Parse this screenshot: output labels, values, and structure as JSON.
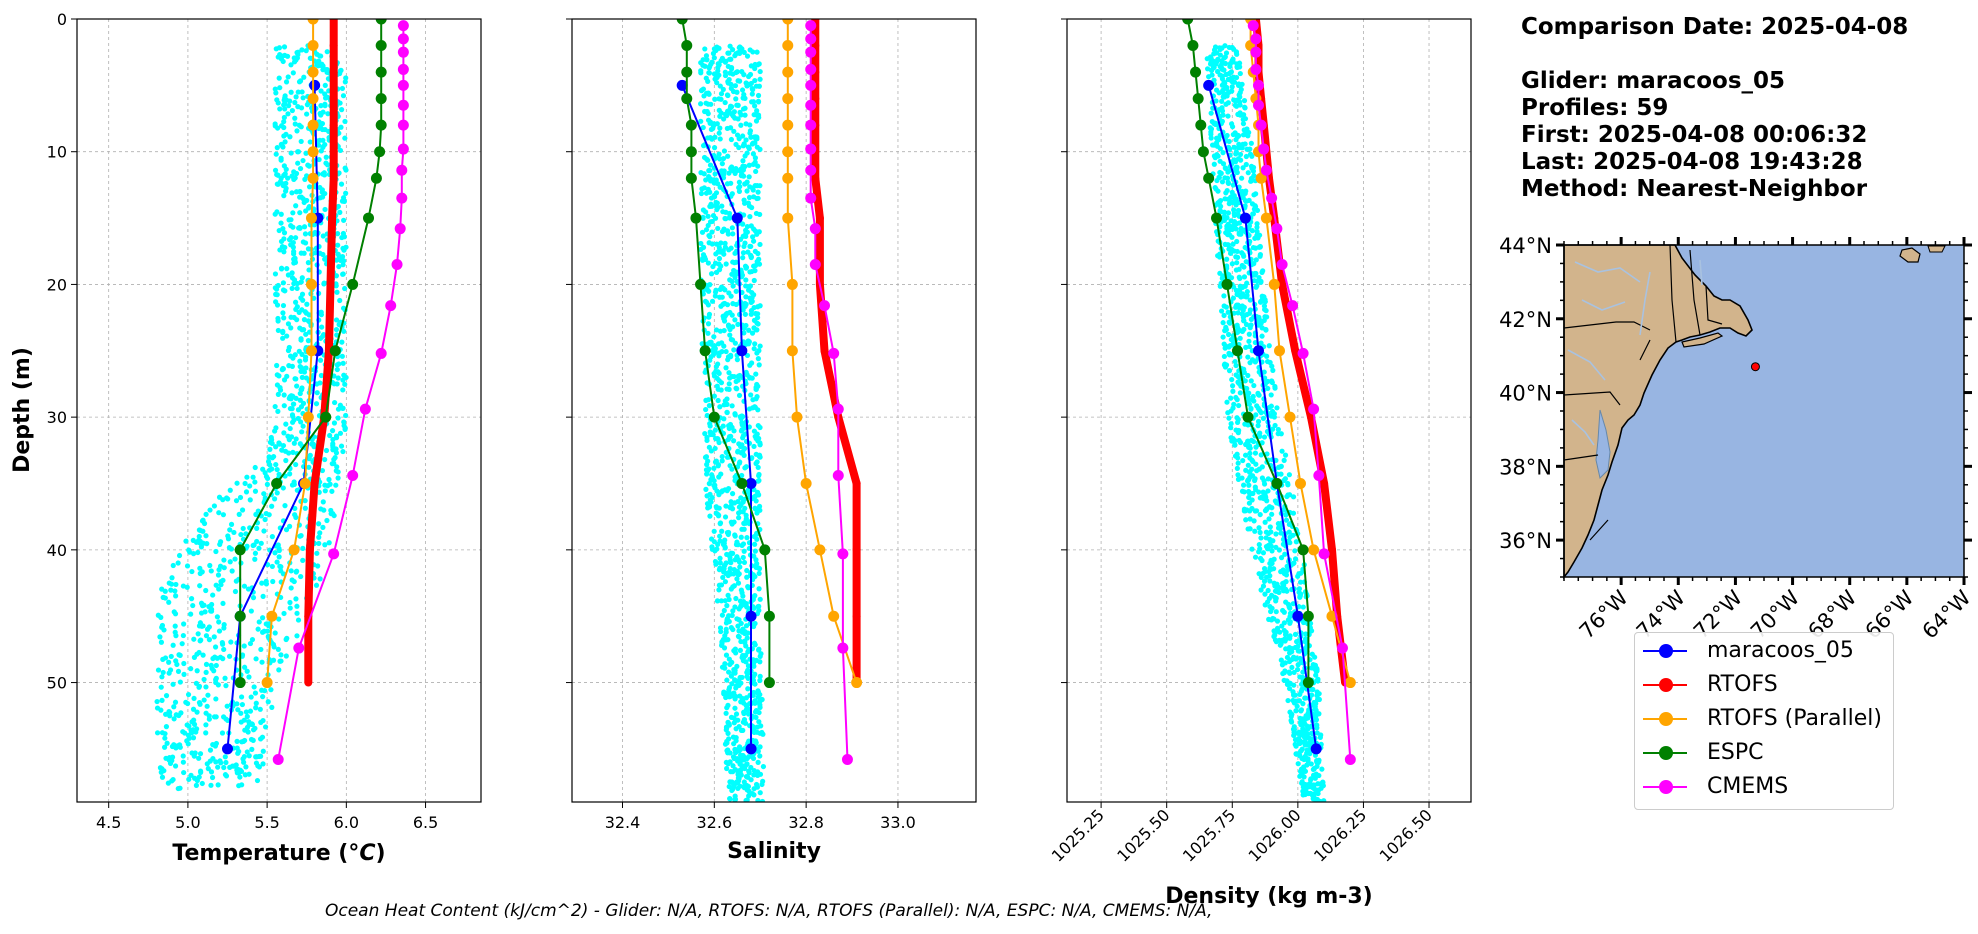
{
  "info": {
    "comparison_date": "Comparison Date: 2025-04-08",
    "glider": "Glider: maracoos_05",
    "profiles": "Profiles: 59",
    "first": "First: 2025-04-08 00:06:32",
    "last": "Last: 2025-04-08 19:43:28",
    "method": "Method: Nearest-Neighbor"
  },
  "footer": "Ocean Heat Content (kJ/cm^2) - Glider: N/A,  RTOFS: N/A,  RTOFS (Parallel): N/A,  ESPC: N/A,  CMEMS: N/A,",
  "colors": {
    "glider_scatter": "#00ffff",
    "maracoos_05": "#0000ff",
    "rtofs": "#ff0000",
    "rtofs_parallel": "#ffa500",
    "espc": "#008000",
    "cmems": "#ff00ff",
    "land": "#d2b48c",
    "ocean": "#98b5e2"
  },
  "legend": [
    {
      "label": "maracoos_05",
      "color": "#0000ff"
    },
    {
      "label": "RTOFS",
      "color": "#ff0000"
    },
    {
      "label": "RTOFS (Parallel)",
      "color": "#ffa500"
    },
    {
      "label": "ESPC",
      "color": "#008000"
    },
    {
      "label": "CMEMS",
      "color": "#ff00ff"
    }
  ],
  "chart_data": [
    {
      "type": "line",
      "xlabel": "Temperature (°C)",
      "ylabel": "Depth (m)",
      "xlim": [
        4.3,
        6.85
      ],
      "ylim": [
        59,
        0
      ],
      "xticks": [
        "4.5",
        "5.0",
        "5.5",
        "6.0",
        "6.5"
      ],
      "yticks": [
        "0",
        "10",
        "20",
        "30",
        "40",
        "50"
      ],
      "grid": true,
      "glider_cloud": [
        {
          "depth": 2,
          "min": 5.55,
          "max": 6.0
        },
        {
          "depth": 10,
          "min": 5.55,
          "max": 6.0
        },
        {
          "depth": 20,
          "min": 5.55,
          "max": 6.0
        },
        {
          "depth": 30,
          "min": 5.55,
          "max": 6.0
        },
        {
          "depth": 33,
          "min": 5.5,
          "max": 5.98
        },
        {
          "depth": 36,
          "min": 5.2,
          "max": 5.95
        },
        {
          "depth": 39,
          "min": 5.0,
          "max": 5.9
        },
        {
          "depth": 42,
          "min": 4.85,
          "max": 5.85
        },
        {
          "depth": 45,
          "min": 4.8,
          "max": 5.75
        },
        {
          "depth": 50,
          "min": 4.8,
          "max": 5.55
        },
        {
          "depth": 55,
          "min": 4.8,
          "max": 5.5
        },
        {
          "depth": 58,
          "min": 4.85,
          "max": 5.45
        }
      ],
      "series": [
        {
          "name": "maracoos_05",
          "key": "maracoos_05",
          "width": 2,
          "depth": [
            5,
            15,
            25,
            35,
            45,
            55
          ],
          "values": [
            5.8,
            5.82,
            5.82,
            5.73,
            5.33,
            5.25
          ]
        },
        {
          "name": "RTOFS",
          "key": "rtofs",
          "width": 8,
          "depth": [
            0,
            2,
            4,
            6,
            8,
            10,
            12,
            15,
            20,
            25,
            30,
            35,
            40,
            45,
            50
          ],
          "values": [
            5.92,
            5.92,
            5.92,
            5.92,
            5.92,
            5.92,
            5.92,
            5.91,
            5.9,
            5.89,
            5.86,
            5.8,
            5.77,
            5.76,
            5.76
          ]
        },
        {
          "name": "RTOFS (Parallel)",
          "key": "rtofs_parallel",
          "width": 2,
          "depth": [
            0,
            2,
            4,
            6,
            8,
            10,
            12,
            15,
            20,
            25,
            30,
            35,
            40,
            45,
            50
          ],
          "values": [
            5.79,
            5.79,
            5.79,
            5.79,
            5.79,
            5.79,
            5.79,
            5.78,
            5.78,
            5.78,
            5.76,
            5.74,
            5.67,
            5.53,
            5.5
          ]
        },
        {
          "name": "ESPC",
          "key": "espc",
          "width": 2,
          "depth": [
            0,
            2,
            4,
            6,
            8,
            10,
            12,
            15,
            20,
            25,
            30,
            35,
            40,
            45,
            50
          ],
          "values": [
            6.22,
            6.22,
            6.22,
            6.22,
            6.22,
            6.21,
            6.19,
            6.14,
            6.04,
            5.93,
            5.87,
            5.56,
            5.33,
            5.33,
            5.33
          ]
        },
        {
          "name": "CMEMS",
          "key": "cmems",
          "width": 2,
          "depth": [
            0.5,
            1.5,
            2.5,
            3.8,
            5,
            6.5,
            8,
            9.8,
            11.4,
            13.5,
            15.8,
            18.5,
            21.6,
            25.2,
            29.4,
            34.4,
            40.3,
            47.4,
            55.8
          ],
          "values": [
            6.36,
            6.36,
            6.36,
            6.36,
            6.36,
            6.36,
            6.36,
            6.36,
            6.35,
            6.35,
            6.34,
            6.32,
            6.28,
            6.22,
            6.12,
            6.04,
            5.92,
            5.7,
            5.57
          ]
        }
      ]
    },
    {
      "type": "line",
      "xlabel": "Salinity",
      "xlim": [
        32.29,
        33.17
      ],
      "ylim": [
        59,
        0
      ],
      "xticks": [
        "32.4",
        "32.6",
        "32.8",
        "33.0"
      ],
      "grid": true,
      "glider_cloud": [
        {
          "depth": 2,
          "min": 32.57,
          "max": 32.7
        },
        {
          "depth": 20,
          "min": 32.57,
          "max": 32.7
        },
        {
          "depth": 35,
          "min": 32.58,
          "max": 32.7
        },
        {
          "depth": 45,
          "min": 32.61,
          "max": 32.7
        },
        {
          "depth": 59,
          "min": 32.63,
          "max": 32.71
        }
      ],
      "series": [
        {
          "name": "maracoos_05",
          "key": "maracoos_05",
          "width": 2,
          "depth": [
            5,
            15,
            25,
            35,
            45,
            55
          ],
          "values": [
            32.53,
            32.65,
            32.66,
            32.68,
            32.68,
            32.68
          ]
        },
        {
          "name": "RTOFS",
          "key": "rtofs",
          "width": 8,
          "depth": [
            0,
            2,
            4,
            6,
            8,
            10,
            12,
            15,
            20,
            25,
            30,
            35,
            40,
            45,
            50
          ],
          "values": [
            32.82,
            32.82,
            32.82,
            32.82,
            32.82,
            32.82,
            32.82,
            32.83,
            32.83,
            32.84,
            32.87,
            32.91,
            32.91,
            32.91,
            32.91
          ]
        },
        {
          "name": "RTOFS (Parallel)",
          "key": "rtofs_parallel",
          "width": 2,
          "depth": [
            0,
            2,
            4,
            6,
            8,
            10,
            12,
            15,
            20,
            25,
            30,
            35,
            40,
            45,
            50
          ],
          "values": [
            32.76,
            32.76,
            32.76,
            32.76,
            32.76,
            32.76,
            32.76,
            32.76,
            32.77,
            32.77,
            32.78,
            32.8,
            32.83,
            32.86,
            32.91
          ]
        },
        {
          "name": "ESPC",
          "key": "espc",
          "width": 2,
          "depth": [
            0,
            2,
            4,
            6,
            8,
            10,
            12,
            15,
            20,
            25,
            30,
            35,
            40,
            45,
            50
          ],
          "values": [
            32.53,
            32.54,
            32.54,
            32.54,
            32.55,
            32.55,
            32.55,
            32.56,
            32.57,
            32.58,
            32.6,
            32.66,
            32.71,
            32.72,
            32.72
          ]
        },
        {
          "name": "CMEMS",
          "key": "cmems",
          "width": 2,
          "depth": [
            0.5,
            1.5,
            2.5,
            3.8,
            5,
            6.5,
            8,
            9.8,
            11.4,
            13.5,
            15.8,
            18.5,
            21.6,
            25.2,
            29.4,
            34.4,
            40.3,
            47.4,
            55.8
          ],
          "values": [
            32.81,
            32.81,
            32.81,
            32.81,
            32.81,
            32.81,
            32.81,
            32.81,
            32.81,
            32.81,
            32.82,
            32.82,
            32.84,
            32.86,
            32.87,
            32.87,
            32.88,
            32.88,
            32.89
          ]
        }
      ]
    },
    {
      "type": "line",
      "xlabel": "Density (kg m-3)",
      "xlim": [
        1025.12,
        1026.66
      ],
      "ylim": [
        59,
        0
      ],
      "xticks": [
        "1025.25",
        "1025.50",
        "1025.75",
        "1026.00",
        "1026.25",
        "1026.50"
      ],
      "grid": true,
      "glider_cloud": [
        {
          "depth": 2,
          "min": 1025.65,
          "max": 1025.77
        },
        {
          "depth": 10,
          "min": 1025.67,
          "max": 1025.83
        },
        {
          "depth": 20,
          "min": 1025.7,
          "max": 1025.87
        },
        {
          "depth": 30,
          "min": 1025.73,
          "max": 1025.93
        },
        {
          "depth": 40,
          "min": 1025.82,
          "max": 1026.02
        },
        {
          "depth": 50,
          "min": 1025.95,
          "max": 1026.08
        },
        {
          "depth": 59,
          "min": 1026.02,
          "max": 1026.1
        }
      ],
      "series": [
        {
          "name": "maracoos_05",
          "key": "maracoos_05",
          "width": 2,
          "depth": [
            5,
            15,
            25,
            35,
            45,
            55
          ],
          "values": [
            1025.66,
            1025.8,
            1025.85,
            1025.92,
            1026.0,
            1026.07
          ]
        },
        {
          "name": "RTOFS",
          "key": "rtofs",
          "width": 8,
          "depth": [
            0,
            2,
            4,
            6,
            8,
            10,
            12,
            15,
            20,
            25,
            30,
            35,
            40,
            45,
            50
          ],
          "values": [
            1025.84,
            1025.85,
            1025.85,
            1025.86,
            1025.87,
            1025.88,
            1025.89,
            1025.91,
            1025.94,
            1025.99,
            1026.05,
            1026.1,
            1026.13,
            1026.15,
            1026.18
          ]
        },
        {
          "name": "RTOFS (Parallel)",
          "key": "rtofs_parallel",
          "width": 2,
          "depth": [
            0,
            2,
            4,
            6,
            8,
            10,
            12,
            15,
            20,
            25,
            30,
            35,
            40,
            45,
            50
          ],
          "values": [
            1025.82,
            1025.82,
            1025.83,
            1025.84,
            1025.85,
            1025.85,
            1025.86,
            1025.88,
            1025.91,
            1025.93,
            1025.97,
            1026.01,
            1026.06,
            1026.13,
            1026.2
          ]
        },
        {
          "name": "ESPC",
          "key": "espc",
          "width": 2,
          "depth": [
            0,
            2,
            4,
            6,
            8,
            10,
            12,
            15,
            20,
            25,
            30,
            35,
            40,
            45,
            50
          ],
          "values": [
            1025.58,
            1025.6,
            1025.61,
            1025.62,
            1025.63,
            1025.64,
            1025.66,
            1025.69,
            1025.73,
            1025.77,
            1025.81,
            1025.92,
            1026.02,
            1026.04,
            1026.04
          ]
        },
        {
          "name": "CMEMS",
          "key": "cmems",
          "width": 2,
          "depth": [
            0.5,
            1.5,
            2.5,
            3.8,
            5,
            6.5,
            8,
            9.8,
            11.4,
            13.5,
            15.8,
            18.5,
            21.6,
            25.2,
            29.4,
            34.4,
            40.3,
            47.4,
            55.8
          ],
          "values": [
            1025.83,
            1025.84,
            1025.84,
            1025.84,
            1025.85,
            1025.85,
            1025.86,
            1025.87,
            1025.88,
            1025.9,
            1025.92,
            1025.94,
            1025.98,
            1026.02,
            1026.06,
            1026.08,
            1026.1,
            1026.17,
            1026.2
          ]
        }
      ]
    }
  ],
  "map": {
    "lat_range": [
      35,
      44
    ],
    "lon_range": [
      -78,
      -64
    ],
    "lat_ticks": [
      "44°N",
      "42°N",
      "40°N",
      "38°N",
      "36°N"
    ],
    "lon_ticks": [
      "76°W",
      "74°W",
      "72°W",
      "70°W",
      "68°W",
      "66°W",
      "64°W"
    ],
    "glider_position": {
      "lat": 40.7,
      "lon": -71.3
    }
  }
}
